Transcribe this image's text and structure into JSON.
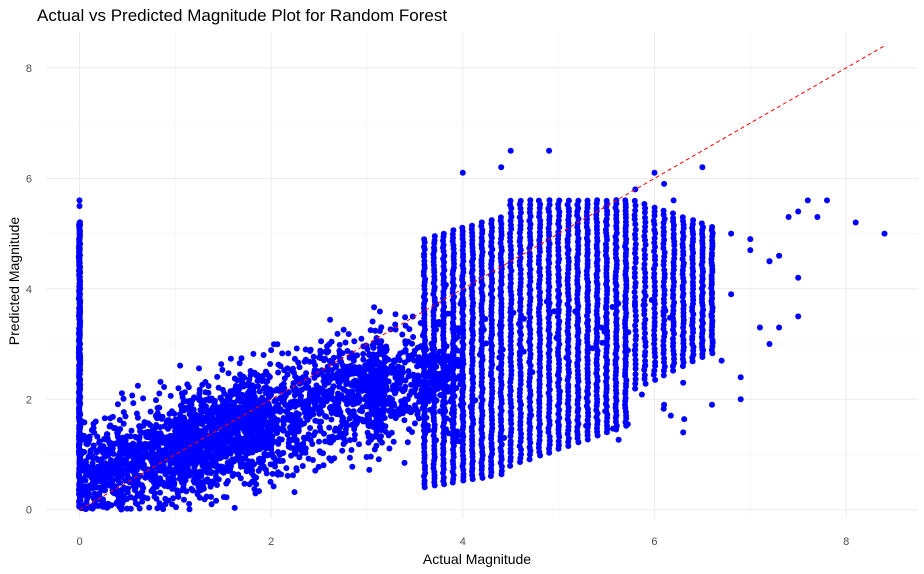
{
  "chart_data": {
    "type": "scatter",
    "title": "Actual vs Predicted Magnitude Plot for Random Forest",
    "xlabel": "Actual Magnitude",
    "ylabel": "Predicted Magnitude",
    "xlim": [
      -0.35,
      8.75
    ],
    "ylim": [
      -0.15,
      8.65
    ],
    "x_ticks": [
      0,
      2,
      4,
      6,
      8
    ],
    "y_ticks": [
      0,
      2,
      4,
      6,
      8
    ],
    "x_tick_labels": [
      "0",
      "2",
      "4",
      "6",
      "8"
    ],
    "y_tick_labels": [
      "0",
      "2",
      "4",
      "6",
      "8"
    ],
    "grid": true,
    "legend": "none",
    "point_color": "#0000ff",
    "reference_line": {
      "style": "dashed",
      "color": "#ff0000",
      "x": [
        0,
        8.4
      ],
      "y": [
        0,
        8.4
      ]
    },
    "series": [
      {
        "clusters": [
          {
            "x_range": [
              0,
              2
            ],
            "y_center_slope": 0.55,
            "y_center_intercept": 0.55,
            "y_spread": 0.9,
            "count": 1400
          },
          {
            "x_range": [
              1,
              3.2
            ],
            "y_center_slope": 0.6,
            "y_center_intercept": 0.45,
            "y_spread": 1.0,
            "count": 1300
          },
          {
            "x_range": [
              3.0,
              4.0
            ],
            "y_center_slope": 0.5,
            "y_center_intercept": 0.6,
            "y_spread": 1.1,
            "count": 450
          }
        ],
        "vertical_columns_x": [
          0,
          3.6,
          3.7,
          3.8,
          3.9,
          4.0,
          4.1,
          4.2,
          4.3,
          4.4,
          4.5,
          4.6,
          4.7,
          4.8,
          4.9,
          5.0,
          5.1,
          5.2,
          5.3,
          5.4,
          5.5,
          5.6,
          5.7,
          5.8,
          5.9,
          6.0,
          6.1,
          6.2,
          6.3,
          6.4,
          6.5,
          6.6
        ],
        "x": [
          4.0,
          4.5,
          4.9,
          4.4,
          5.8,
          6.0,
          6.1,
          6.2,
          6.5,
          6.8,
          7.0,
          7.2,
          7.3,
          7.4,
          7.5,
          7.6,
          7.7,
          7.8,
          8.1,
          8.4,
          7.0,
          7.2,
          7.5,
          6.6,
          6.8,
          5.0,
          5.8,
          5.9,
          6.1,
          6.3,
          6.5,
          6.7,
          6.9,
          7.1,
          7.2,
          7.3,
          7.5,
          6.3,
          6.6,
          6.9,
          0,
          0
        ],
        "y": [
          6.1,
          6.5,
          6.5,
          6.2,
          5.8,
          6.1,
          5.9,
          5.6,
          6.2,
          5.0,
          4.9,
          4.5,
          4.6,
          5.3,
          5.4,
          5.6,
          5.3,
          5.6,
          5.2,
          5.0,
          4.7,
          4.5,
          4.2,
          3.5,
          3.9,
          1.5,
          2.9,
          2.6,
          1.9,
          1.4,
          2.9,
          2.7,
          2.4,
          3.3,
          3.0,
          3.3,
          3.5,
          2.3,
          1.9,
          2.0,
          5.6,
          5.5
        ]
      }
    ]
  }
}
